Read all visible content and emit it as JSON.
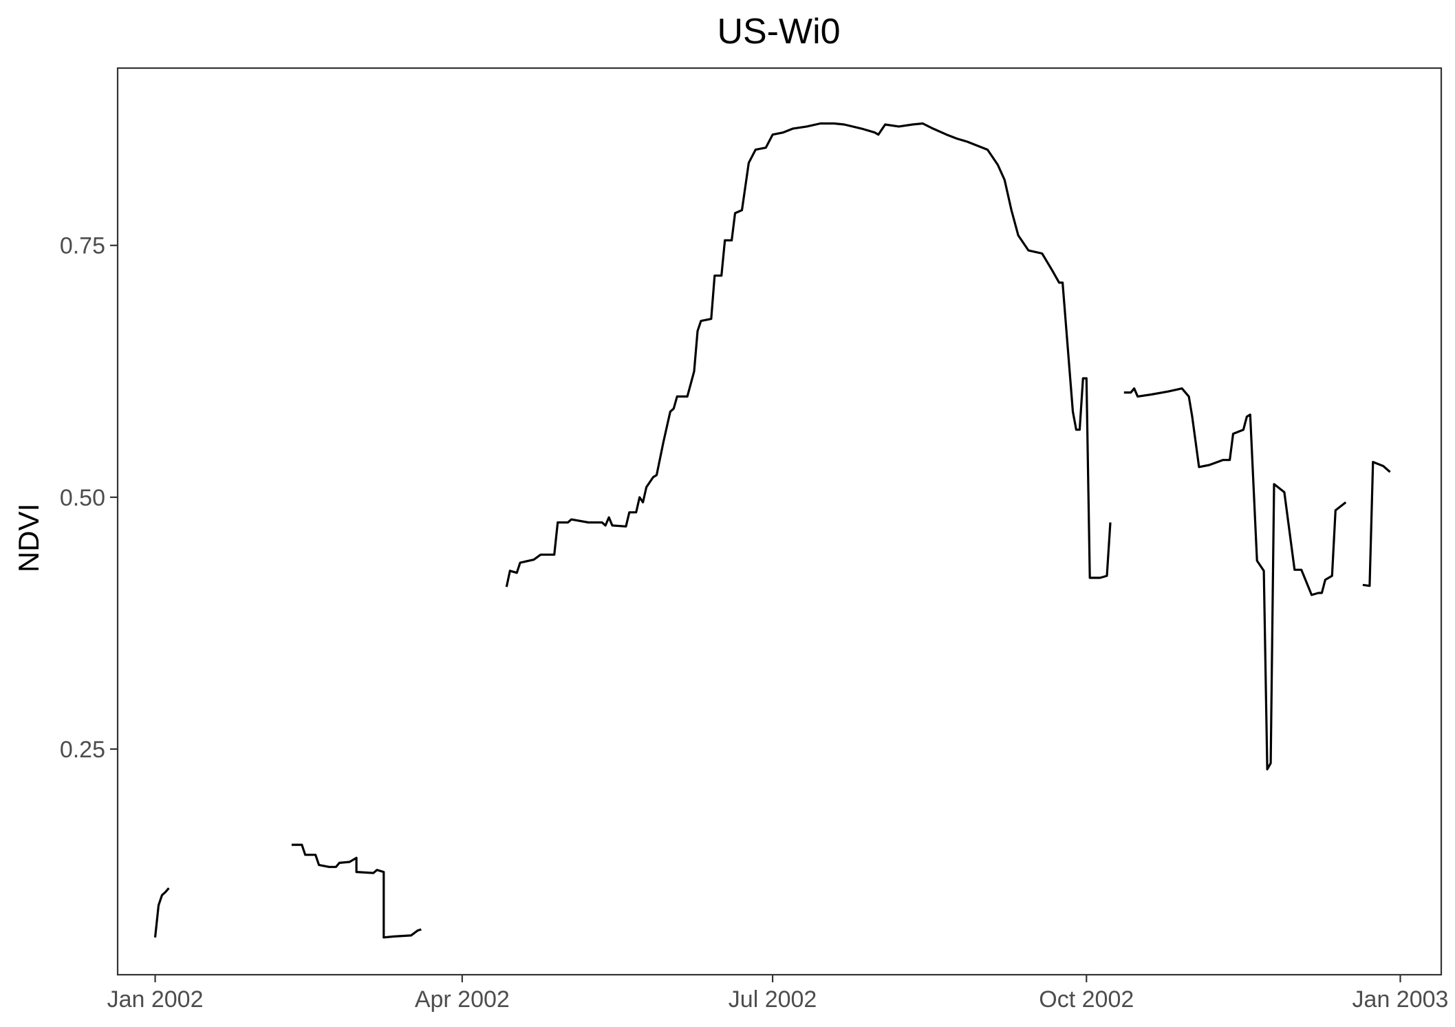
{
  "chart_data": {
    "type": "line",
    "title": "US-Wi0",
    "xlabel": "",
    "ylabel": "NDVI",
    "x_type": "date",
    "xlim": [
      "2001-12-21",
      "2003-01-13"
    ],
    "ylim": [
      0.026,
      0.926
    ],
    "grid": false,
    "legend": "none",
    "x_ticks": [
      {
        "date": "2002-01-01",
        "label": "Jan 2002"
      },
      {
        "date": "2002-04-01",
        "label": "Apr 2002"
      },
      {
        "date": "2002-07-01",
        "label": "Jul 2002"
      },
      {
        "date": "2002-10-01",
        "label": "Oct 2002"
      },
      {
        "date": "2003-01-01",
        "label": "Jan 2003"
      }
    ],
    "y_ticks": [
      {
        "value": 0.25,
        "label": "0.25"
      },
      {
        "value": 0.5,
        "label": "0.50"
      },
      {
        "value": 0.75,
        "label": "0.75"
      }
    ],
    "colors": {
      "line": "#000000",
      "axis": "#333333",
      "tick_text": "#4d4d4d",
      "background": "#ffffff"
    },
    "segments": [
      [
        [
          "2002-01-01",
          0.063
        ],
        [
          "2002-01-02",
          0.095
        ],
        [
          "2002-01-03",
          0.105
        ],
        [
          "2002-01-04",
          0.108
        ],
        [
          "2002-01-05",
          0.112
        ]
      ],
      [
        [
          "2002-02-10",
          0.155
        ],
        [
          "2002-02-13",
          0.155
        ],
        [
          "2002-02-14",
          0.145
        ],
        [
          "2002-02-17",
          0.145
        ],
        [
          "2002-02-18",
          0.135
        ],
        [
          "2002-02-21",
          0.133
        ],
        [
          "2002-02-23",
          0.133
        ],
        [
          "2002-02-24",
          0.137
        ],
        [
          "2002-02-27",
          0.138
        ],
        [
          "2002-03-01",
          0.142
        ],
        [
          "2002-03-01",
          0.128
        ],
        [
          "2002-03-06",
          0.127
        ],
        [
          "2002-03-07",
          0.13
        ],
        [
          "2002-03-09",
          0.128
        ],
        [
          "2002-03-09",
          0.063
        ],
        [
          "2002-03-12",
          0.064
        ],
        [
          "2002-03-17",
          0.065
        ],
        [
          "2002-03-19",
          0.07
        ],
        [
          "2002-03-20",
          0.071
        ]
      ],
      [
        [
          "2002-04-14",
          0.411
        ],
        [
          "2002-04-15",
          0.427
        ],
        [
          "2002-04-17",
          0.425
        ],
        [
          "2002-04-18",
          0.435
        ],
        [
          "2002-04-22",
          0.438
        ],
        [
          "2002-04-24",
          0.443
        ],
        [
          "2002-04-28",
          0.443
        ],
        [
          "2002-04-29",
          0.475
        ],
        [
          "2002-05-02",
          0.475
        ],
        [
          "2002-05-03",
          0.478
        ],
        [
          "2002-05-08",
          0.475
        ],
        [
          "2002-05-12",
          0.475
        ],
        [
          "2002-05-13",
          0.472
        ],
        [
          "2002-05-14",
          0.48
        ],
        [
          "2002-05-15",
          0.472
        ],
        [
          "2002-05-19",
          0.471
        ],
        [
          "2002-05-20",
          0.485
        ],
        [
          "2002-05-22",
          0.485
        ],
        [
          "2002-05-23",
          0.5
        ],
        [
          "2002-05-24",
          0.495
        ],
        [
          "2002-05-25",
          0.51
        ],
        [
          "2002-05-27",
          0.52
        ],
        [
          "2002-05-28",
          0.522
        ],
        [
          "2002-05-30",
          0.555
        ],
        [
          "2002-06-01",
          0.585
        ],
        [
          "2002-06-02",
          0.588
        ],
        [
          "2002-06-03",
          0.6
        ],
        [
          "2002-06-06",
          0.6
        ],
        [
          "2002-06-08",
          0.625
        ],
        [
          "2002-06-09",
          0.665
        ],
        [
          "2002-06-10",
          0.675
        ],
        [
          "2002-06-13",
          0.677
        ],
        [
          "2002-06-14",
          0.72
        ],
        [
          "2002-06-16",
          0.72
        ],
        [
          "2002-06-17",
          0.755
        ],
        [
          "2002-06-19",
          0.755
        ],
        [
          "2002-06-20",
          0.782
        ],
        [
          "2002-06-22",
          0.785
        ],
        [
          "2002-06-24",
          0.832
        ],
        [
          "2002-06-26",
          0.845
        ],
        [
          "2002-06-29",
          0.847
        ],
        [
          "2002-07-01",
          0.86
        ],
        [
          "2002-07-04",
          0.862
        ],
        [
          "2002-07-07",
          0.866
        ],
        [
          "2002-07-11",
          0.868
        ],
        [
          "2002-07-15",
          0.871
        ],
        [
          "2002-07-19",
          0.871
        ],
        [
          "2002-07-22",
          0.87
        ],
        [
          "2002-07-27",
          0.866
        ],
        [
          "2002-07-31",
          0.862
        ],
        [
          "2002-08-01",
          0.86
        ],
        [
          "2002-08-03",
          0.87
        ],
        [
          "2002-08-07",
          0.868
        ],
        [
          "2002-08-11",
          0.87
        ],
        [
          "2002-08-14",
          0.871
        ],
        [
          "2002-08-17",
          0.866
        ],
        [
          "2002-08-21",
          0.86
        ],
        [
          "2002-08-24",
          0.856
        ],
        [
          "2002-08-27",
          0.853
        ],
        [
          "2002-08-30",
          0.849
        ],
        [
          "2002-09-02",
          0.845
        ],
        [
          "2002-09-05",
          0.83
        ],
        [
          "2002-09-07",
          0.815
        ],
        [
          "2002-09-09",
          0.785
        ],
        [
          "2002-09-11",
          0.76
        ],
        [
          "2002-09-14",
          0.745
        ],
        [
          "2002-09-18",
          0.742
        ],
        [
          "2002-09-21",
          0.725
        ],
        [
          "2002-09-23",
          0.713
        ],
        [
          "2002-09-24",
          0.713
        ],
        [
          "2002-09-27",
          0.585
        ],
        [
          "2002-09-28",
          0.567
        ],
        [
          "2002-09-29",
          0.567
        ],
        [
          "2002-09-30",
          0.618
        ],
        [
          "2002-10-01",
          0.618
        ],
        [
          "2002-10-02",
          0.42
        ],
        [
          "2002-10-05",
          0.42
        ],
        [
          "2002-10-07",
          0.422
        ],
        [
          "2002-10-08",
          0.475
        ]
      ],
      [
        [
          "2002-10-12",
          0.604
        ],
        [
          "2002-10-14",
          0.604
        ],
        [
          "2002-10-15",
          0.608
        ],
        [
          "2002-10-16",
          0.6
        ],
        [
          "2002-10-20",
          0.602
        ],
        [
          "2002-10-25",
          0.605
        ],
        [
          "2002-10-29",
          0.608
        ],
        [
          "2002-10-31",
          0.6
        ],
        [
          "2002-11-01",
          0.58
        ],
        [
          "2002-11-03",
          0.53
        ],
        [
          "2002-11-06",
          0.532
        ],
        [
          "2002-11-10",
          0.537
        ],
        [
          "2002-11-12",
          0.537
        ],
        [
          "2002-11-13",
          0.563
        ],
        [
          "2002-11-16",
          0.567
        ],
        [
          "2002-11-17",
          0.58
        ],
        [
          "2002-11-18",
          0.582
        ],
        [
          "2002-11-20",
          0.437
        ],
        [
          "2002-11-22",
          0.427
        ],
        [
          "2002-11-23",
          0.23
        ],
        [
          "2002-11-24",
          0.236
        ],
        [
          "2002-11-25",
          0.513
        ],
        [
          "2002-11-28",
          0.505
        ],
        [
          "2002-12-01",
          0.428
        ],
        [
          "2002-12-03",
          0.428
        ],
        [
          "2002-12-06",
          0.403
        ],
        [
          "2002-12-08",
          0.405
        ],
        [
          "2002-12-09",
          0.405
        ],
        [
          "2002-12-10",
          0.418
        ],
        [
          "2002-12-12",
          0.422
        ],
        [
          "2002-12-13",
          0.487
        ],
        [
          "2002-12-16",
          0.495
        ]
      ],
      [
        [
          "2002-12-21",
          0.413
        ],
        [
          "2002-12-23",
          0.412
        ],
        [
          "2002-12-24",
          0.535
        ],
        [
          "2002-12-27",
          0.531
        ],
        [
          "2002-12-29",
          0.525
        ]
      ]
    ]
  }
}
